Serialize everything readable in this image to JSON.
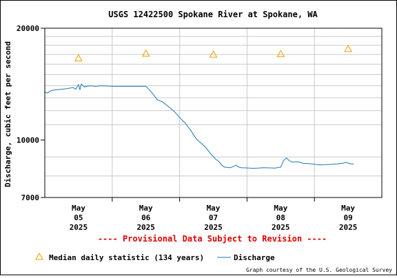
{
  "chart_data": {
    "type": "line",
    "title": "USGS 12422500 Spokane River at Spokane, WA",
    "ylabel": "Discharge, cubic feet per second",
    "xlabel": "",
    "y_scale": "log",
    "ylim": [
      7000,
      20000
    ],
    "y_ticks": [
      {
        "value": 20000,
        "label": "20000"
      },
      {
        "value": 10000,
        "label": "10000"
      },
      {
        "value": 7000,
        "label": "7000"
      }
    ],
    "xlim_hours": [
      0,
      120
    ],
    "x_ticks": [
      {
        "hour": 12,
        "lines": [
          "May",
          "05",
          "2025"
        ]
      },
      {
        "hour": 36,
        "lines": [
          "May",
          "06",
          "2025"
        ]
      },
      {
        "hour": 60,
        "lines": [
          "May",
          "07",
          "2025"
        ]
      },
      {
        "hour": 84,
        "lines": [
          "May",
          "08",
          "2025"
        ]
      },
      {
        "hour": 108,
        "lines": [
          "May",
          "09",
          "2025"
        ]
      }
    ],
    "grid": true,
    "series": [
      {
        "name": "Discharge",
        "color": "#1a78b4",
        "points": [
          [
            0,
            13450
          ],
          [
            1,
            13380
          ],
          [
            2,
            13550
          ],
          [
            3,
            13620
          ],
          [
            4,
            13650
          ],
          [
            6,
            13700
          ],
          [
            8,
            13750
          ],
          [
            10,
            13850
          ],
          [
            11,
            13700
          ],
          [
            12,
            14100
          ],
          [
            12.5,
            13650
          ],
          [
            13,
            14150
          ],
          [
            14,
            13900
          ],
          [
            16,
            14000
          ],
          [
            18,
            13950
          ],
          [
            20,
            14000
          ],
          [
            24,
            13950
          ],
          [
            28,
            13950
          ],
          [
            32,
            13950
          ],
          [
            35,
            13950
          ],
          [
            36,
            13950
          ],
          [
            37,
            13700
          ],
          [
            38,
            13450
          ],
          [
            39,
            13150
          ],
          [
            40,
            12850
          ],
          [
            42,
            12650
          ],
          [
            44,
            12300
          ],
          [
            46,
            11950
          ],
          [
            48,
            11500
          ],
          [
            50,
            11100
          ],
          [
            52,
            10600
          ],
          [
            54,
            10050
          ],
          [
            55,
            9900
          ],
          [
            57,
            9600
          ],
          [
            59,
            9200
          ],
          [
            61,
            8850
          ],
          [
            62,
            8750
          ],
          [
            63,
            8550
          ],
          [
            64,
            8450
          ],
          [
            65,
            8430
          ],
          [
            66,
            8420
          ],
          [
            67,
            8470
          ],
          [
            68,
            8550
          ],
          [
            69,
            8460
          ],
          [
            70,
            8420
          ],
          [
            72,
            8410
          ],
          [
            74,
            8390
          ],
          [
            76,
            8400
          ],
          [
            78,
            8420
          ],
          [
            80,
            8410
          ],
          [
            82,
            8400
          ],
          [
            84,
            8450
          ],
          [
            85,
            8800
          ],
          [
            86,
            8950
          ],
          [
            87,
            8800
          ],
          [
            88,
            8720
          ],
          [
            90,
            8740
          ],
          [
            92,
            8650
          ],
          [
            94,
            8640
          ],
          [
            96,
            8600
          ],
          [
            98,
            8570
          ],
          [
            100,
            8580
          ],
          [
            102,
            8600
          ],
          [
            104,
            8620
          ],
          [
            106,
            8650
          ],
          [
            107,
            8700
          ],
          [
            108,
            8670
          ],
          [
            109,
            8620
          ],
          [
            110,
            8610
          ]
        ]
      },
      {
        "name": "Median daily statistic (134 years)",
        "color": "#e8a000",
        "marker": "triangle",
        "points": [
          [
            12,
            16600
          ],
          [
            36,
            17100
          ],
          [
            60,
            17000
          ],
          [
            84,
            17050
          ],
          [
            108,
            17600
          ]
        ]
      }
    ],
    "annotation": "---- Provisional Data Subject to Revision ----",
    "credit": "Graph courtesy of the U.S. Geological Survey"
  }
}
